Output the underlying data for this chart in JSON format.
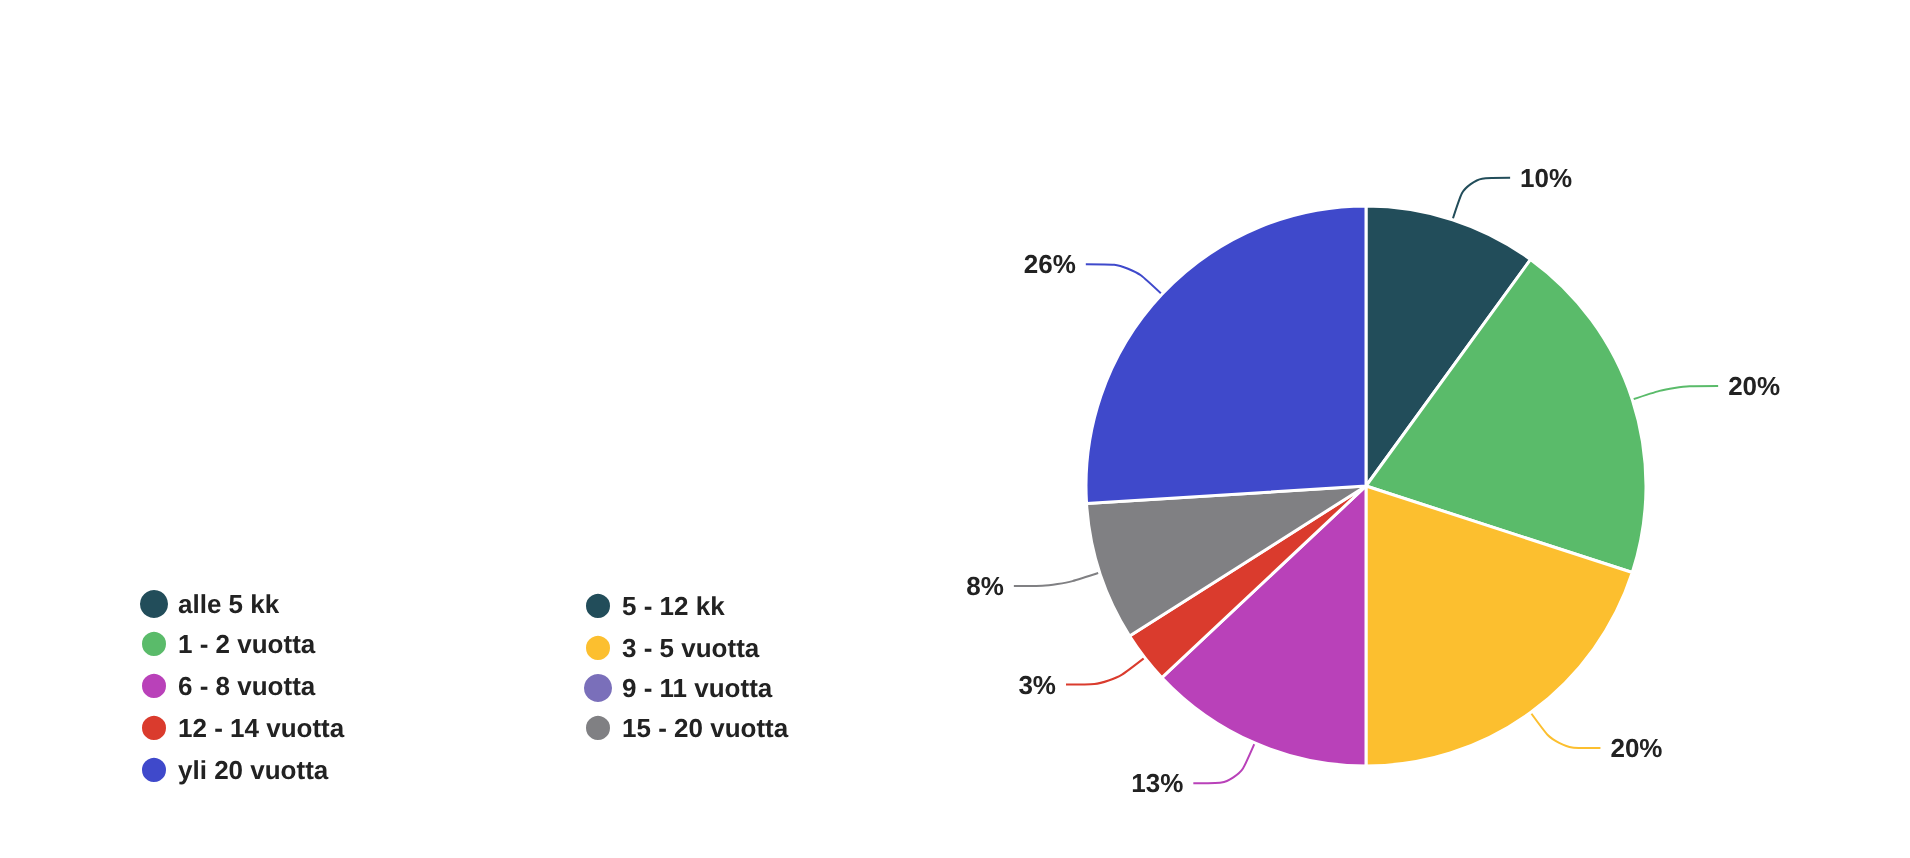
{
  "chart_data": {
    "type": "pie",
    "categories": [
      "alle 5 kk",
      "5 - 12 kk",
      "1 - 2 vuotta",
      "3 - 5 vuotta",
      "6 - 8 vuotta",
      "9 - 11 vuotta",
      "12 - 14 vuotta",
      "15 - 20 vuotta",
      "yli 20 vuotta"
    ],
    "values": [
      0,
      10,
      20,
      20,
      13,
      0,
      3,
      8,
      26
    ],
    "colors": [
      "#224d5a",
      "#224d5a",
      "#5abb6a",
      "#fcbf2f",
      "#b941b9",
      "#7a6fba",
      "#da3b2d",
      "#808083",
      "#3f49cb"
    ],
    "value_labels": [
      null,
      "10%",
      "20%",
      "20%",
      "13%",
      null,
      "3%",
      "8%",
      "26%"
    ],
    "legend": "left"
  }
}
